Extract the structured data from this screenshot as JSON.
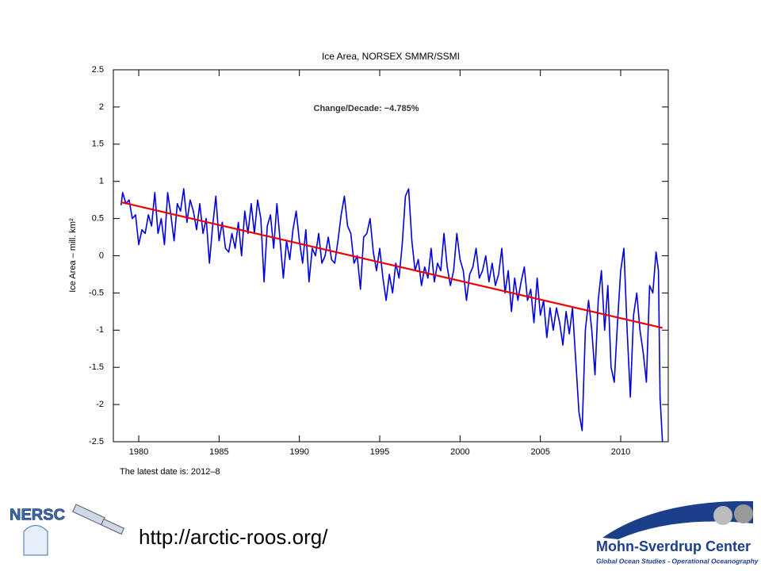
{
  "chart_data": {
    "type": "line",
    "title": "Ice Area, NORSEX SMMR/SSMI",
    "annotation": "Change/Decade: −4.785%",
    "ylabel": "Ice Area – mill. km²",
    "note": "The latest date is: 2012–8",
    "xlim": [
      1978.42,
      2012.96
    ],
    "ylim": [
      -2.5,
      2.5
    ],
    "xticks": [
      1980,
      1985,
      1990,
      1995,
      2000,
      2005,
      2010
    ],
    "yticks": [
      -2.5,
      -2,
      -1.5,
      -1,
      -0.5,
      0,
      0.5,
      1,
      1.5,
      2,
      2.5
    ],
    "series": [
      {
        "color": "#0000dd",
        "x": [
          1978.9,
          1979.0,
          1979.2,
          1979.4,
          1979.6,
          1979.8,
          1980.0,
          1980.2,
          1980.4,
          1980.6,
          1980.8,
          1981.0,
          1981.2,
          1981.4,
          1981.6,
          1981.8,
          1982.0,
          1982.2,
          1982.4,
          1982.6,
          1982.8,
          1983.0,
          1983.2,
          1983.4,
          1983.6,
          1983.8,
          1984.0,
          1984.2,
          1984.4,
          1984.6,
          1984.8,
          1985.0,
          1985.2,
          1985.4,
          1985.6,
          1985.8,
          1986.0,
          1986.2,
          1986.4,
          1986.6,
          1986.8,
          1987.0,
          1987.2,
          1987.4,
          1987.6,
          1987.8,
          1988.0,
          1988.2,
          1988.4,
          1988.6,
          1988.8,
          1989.0,
          1989.2,
          1989.4,
          1989.6,
          1989.8,
          1990.0,
          1990.2,
          1990.4,
          1990.6,
          1990.8,
          1991.0,
          1991.2,
          1991.4,
          1991.6,
          1991.8,
          1992.0,
          1992.2,
          1992.4,
          1992.6,
          1992.8,
          1993.0,
          1993.2,
          1993.4,
          1993.6,
          1993.8,
          1994.0,
          1994.2,
          1994.4,
          1994.6,
          1994.8,
          1995.0,
          1995.2,
          1995.4,
          1995.6,
          1995.8,
          1996.0,
          1996.2,
          1996.4,
          1996.6,
          1996.8,
          1997.0,
          1997.2,
          1997.4,
          1997.6,
          1997.8,
          1998.0,
          1998.2,
          1998.4,
          1998.6,
          1998.8,
          1999.0,
          1999.2,
          1999.4,
          1999.6,
          1999.8,
          2000.0,
          2000.2,
          2000.4,
          2000.6,
          2000.8,
          2001.0,
          2001.2,
          2001.4,
          2001.6,
          2001.8,
          2002.0,
          2002.2,
          2002.4,
          2002.6,
          2002.8,
          2003.0,
          2003.2,
          2003.4,
          2003.6,
          2003.8,
          2004.0,
          2004.2,
          2004.4,
          2004.6,
          2004.8,
          2005.0,
          2005.2,
          2005.4,
          2005.6,
          2005.8,
          2006.0,
          2006.2,
          2006.4,
          2006.6,
          2006.8,
          2007.0,
          2007.2,
          2007.4,
          2007.6,
          2007.8,
          2008.0,
          2008.2,
          2008.4,
          2008.6,
          2008.8,
          2009.0,
          2009.2,
          2009.4,
          2009.6,
          2009.8,
          2010.0,
          2010.2,
          2010.4,
          2010.6,
          2010.8,
          2011.0,
          2011.2,
          2011.4,
          2011.6,
          2011.8,
          2012.0,
          2012.2,
          2012.35,
          2012.45,
          2012.6
        ],
        "values": [
          0.68,
          0.85,
          0.7,
          0.75,
          0.5,
          0.55,
          0.15,
          0.35,
          0.3,
          0.55,
          0.4,
          0.85,
          0.3,
          0.5,
          0.15,
          0.85,
          0.55,
          0.2,
          0.7,
          0.6,
          0.9,
          0.45,
          0.75,
          0.6,
          0.35,
          0.7,
          0.3,
          0.5,
          -0.1,
          0.4,
          0.8,
          0.2,
          0.45,
          0.1,
          0.05,
          0.3,
          0.1,
          0.45,
          0.0,
          0.6,
          0.3,
          0.7,
          0.3,
          0.75,
          0.5,
          -0.35,
          0.4,
          0.55,
          0.1,
          0.7,
          0.2,
          -0.3,
          0.2,
          -0.05,
          0.35,
          0.6,
          0.2,
          -0.1,
          0.35,
          -0.35,
          0.1,
          0.0,
          0.3,
          -0.1,
          0.0,
          0.25,
          -0.05,
          -0.1,
          0.2,
          0.55,
          0.8,
          0.4,
          0.3,
          -0.1,
          0.0,
          -0.45,
          0.25,
          0.3,
          0.5,
          0.05,
          -0.2,
          0.1,
          -0.3,
          -0.6,
          -0.25,
          -0.5,
          -0.1,
          -0.3,
          0.15,
          0.8,
          0.9,
          0.2,
          -0.2,
          -0.05,
          -0.4,
          -0.15,
          -0.3,
          0.1,
          -0.35,
          -0.1,
          -0.2,
          0.3,
          -0.15,
          -0.4,
          -0.2,
          0.3,
          -0.05,
          -0.2,
          -0.6,
          -0.25,
          -0.15,
          0.1,
          -0.3,
          -0.2,
          0.0,
          -0.35,
          -0.1,
          -0.4,
          -0.25,
          0.1,
          -0.5,
          -0.2,
          -0.75,
          -0.3,
          -0.6,
          -0.35,
          -0.15,
          -0.6,
          -0.45,
          -0.9,
          -0.3,
          -0.8,
          -0.6,
          -1.1,
          -0.7,
          -1.0,
          -0.7,
          -0.9,
          -1.2,
          -0.75,
          -1.05,
          -0.7,
          -1.4,
          -2.1,
          -2.35,
          -1.0,
          -0.6,
          -1.0,
          -1.6,
          -0.6,
          -0.2,
          -1.0,
          -0.4,
          -1.5,
          -1.7,
          -0.9,
          -0.2,
          0.1,
          -1.0,
          -1.9,
          -0.8,
          -0.5,
          -1.0,
          -1.3,
          -1.7,
          -0.4,
          -0.5,
          0.05,
          -0.2,
          -1.9,
          -2.5
        ]
      },
      {
        "color": "#ee0000",
        "x": [
          1978.9,
          2012.6
        ],
        "values": [
          0.72,
          -0.97
        ]
      }
    ]
  },
  "footer": {
    "url": "http://arctic-roos.org/",
    "left_logo": "NERSC",
    "right_logo": "Mohn-Sverdrup Center",
    "right_logo_tagline": "Global Ocean Studies - Operational Oceanography"
  }
}
